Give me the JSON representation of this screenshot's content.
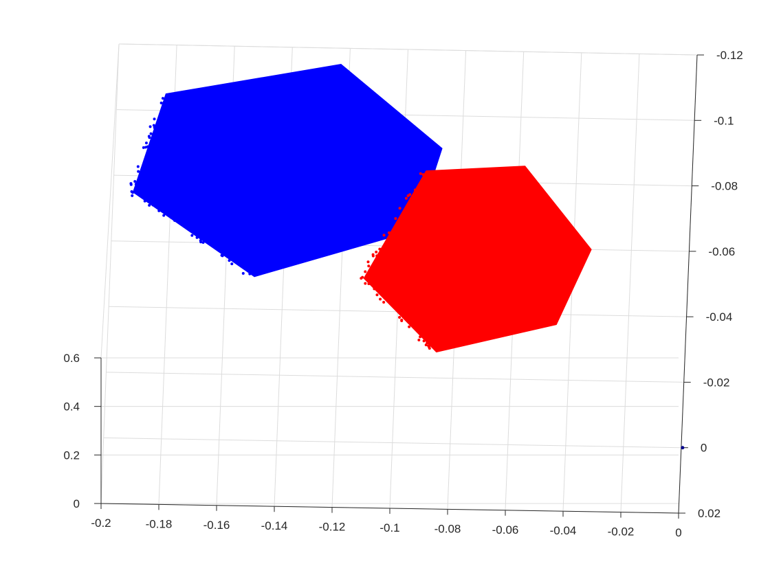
{
  "chart_data": {
    "type": "scatter",
    "view": "3d",
    "grid": true,
    "x_axis": {
      "ticks": [
        -0.2,
        -0.18,
        -0.16,
        -0.14,
        -0.12,
        -0.1,
        -0.08,
        -0.06,
        -0.04,
        -0.02,
        0
      ],
      "tick_labels": [
        "-0.2",
        "-0.18",
        "-0.16",
        "-0.14",
        "-0.12",
        "-0.1",
        "-0.08",
        "-0.06",
        "-0.04",
        "-0.02",
        "0"
      ],
      "range": [
        -0.2,
        0
      ]
    },
    "y_axis": {
      "ticks": [
        0.02,
        0,
        -0.02,
        -0.04,
        -0.06,
        -0.08,
        -0.1,
        -0.12
      ],
      "tick_labels": [
        "0.02",
        "0",
        "-0.02",
        "-0.04",
        "-0.06",
        "-0.08",
        "-0.1",
        "-0.12"
      ],
      "range": [
        0.02,
        -0.12
      ]
    },
    "z_axis": {
      "ticks": [
        0,
        0.2,
        0.4,
        0.6
      ],
      "tick_labels": [
        "0",
        "0.2",
        "0.4",
        "0.6"
      ],
      "range": [
        0,
        0.6
      ]
    },
    "series": [
      {
        "color": "#0000ff",
        "marker": "dot",
        "shape": "hexagonal point cloud",
        "vertices": [
          {
            "x": -0.183,
            "y": -0.105
          },
          {
            "x": -0.123,
            "y": -0.115
          },
          {
            "x": -0.087,
            "y": -0.09
          },
          {
            "x": -0.095,
            "y": -0.065
          },
          {
            "x": -0.15,
            "y": -0.05
          },
          {
            "x": -0.193,
            "y": -0.075
          }
        ]
      },
      {
        "color": "#ff0000",
        "marker": "dot",
        "shape": "hexagonal point cloud",
        "vertices": [
          {
            "x": -0.092,
            "y": -0.083
          },
          {
            "x": -0.058,
            "y": -0.085
          },
          {
            "x": -0.034,
            "y": -0.06
          },
          {
            "x": -0.045,
            "y": -0.037
          },
          {
            "x": -0.086,
            "y": -0.028
          },
          {
            "x": -0.112,
            "y": -0.05
          }
        ]
      }
    ]
  }
}
